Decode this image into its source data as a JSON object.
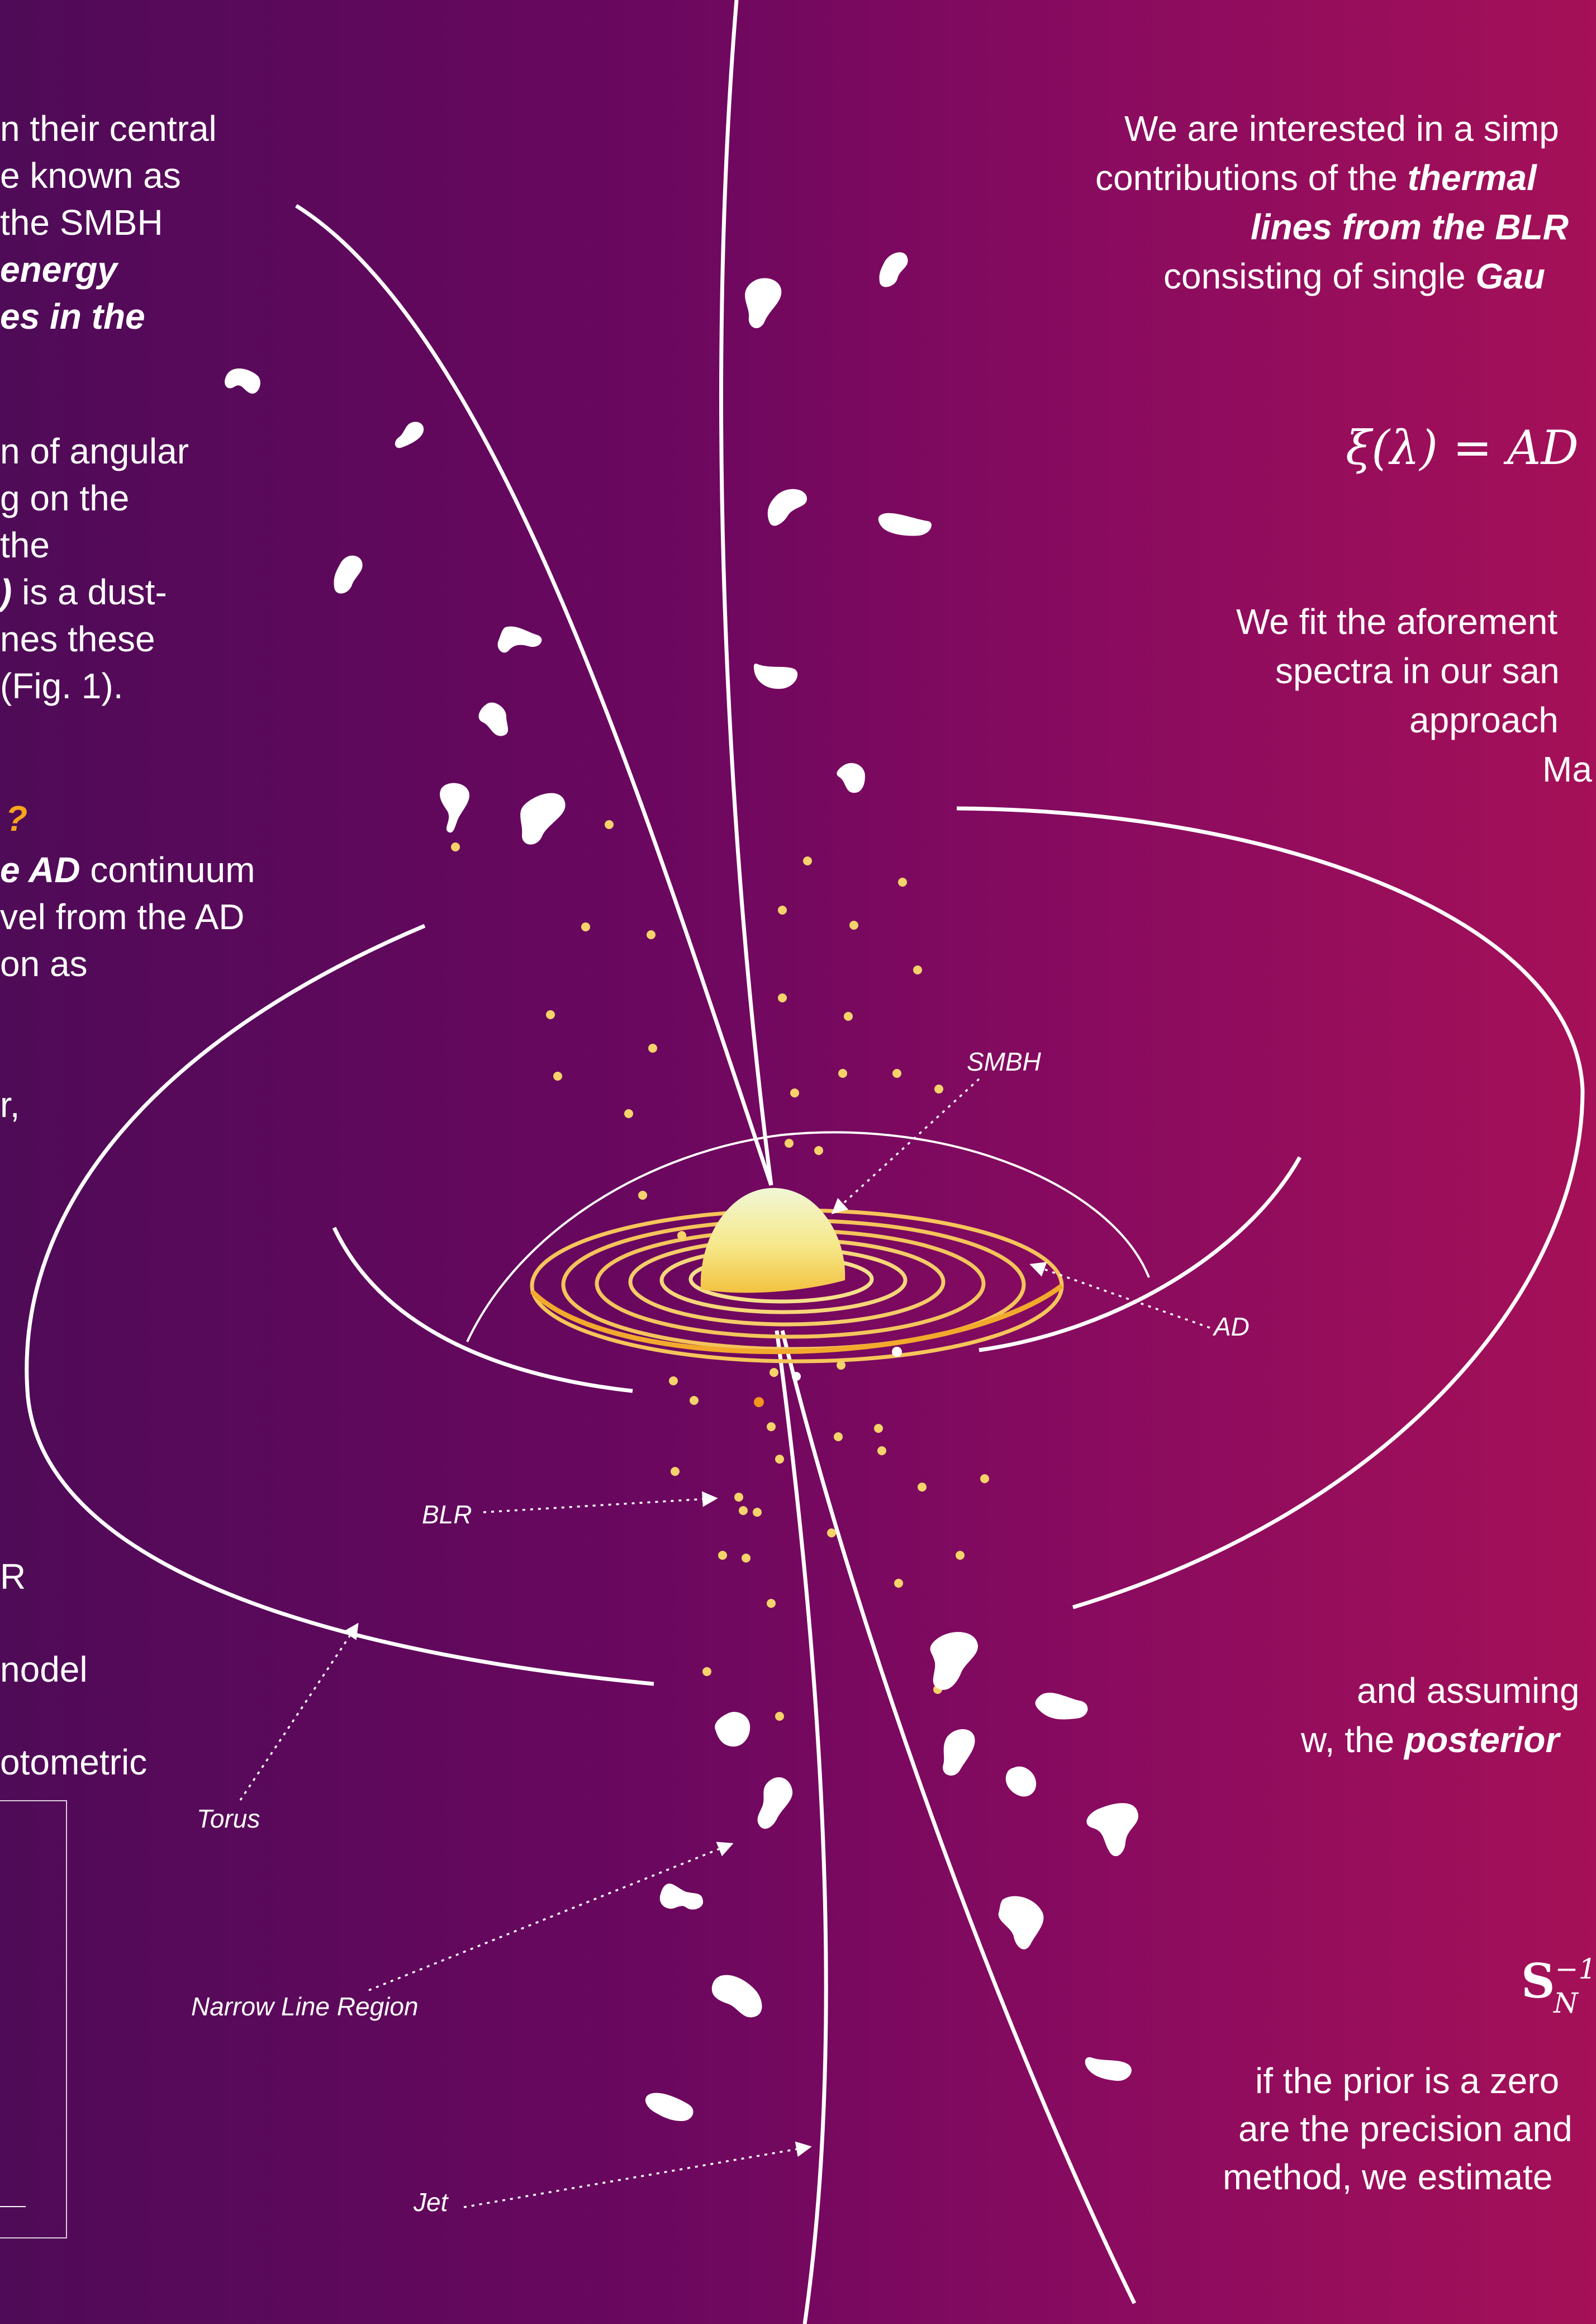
{
  "left_text": {
    "p1": [
      "n their central",
      "e known as",
      "the SMBH"
    ],
    "p1_bold": [
      " energy",
      "es in the"
    ],
    "p2": [
      "n of angular",
      "g on the",
      "the"
    ],
    "p2_mix": {
      "bold": ")",
      "rest": " is a dust-"
    },
    "p2_b": [
      "nes these",
      "(Fig. 1)."
    ],
    "heading": "?",
    "p3_mix": {
      "bold": "e AD",
      "rest": " continuum"
    },
    "p3": [
      "vel from the AD",
      "on as"
    ],
    "p4": [
      "r,"
    ],
    "p5": [
      "R",
      "nodel",
      "otometric"
    ]
  },
  "right_text": {
    "r1": "We are interested in a simp",
    "r2_pre": "contributions of the ",
    "r2_bold": "thermal",
    "r3_bold": "lines from the BLR",
    "r4_pre": "consisting of single ",
    "r4_bold": "Gau",
    "formula": "ξ(λ) = AD",
    "r5": "We fit the aforement",
    "r6": "spectra in our san",
    "r7": "approach",
    "r8": "Ma",
    "r9": "and assuming",
    "r10_pre": "w, the ",
    "r10_bold": "posterior",
    "formula2": "S",
    "formula2_sup": "−1",
    "formula2_sub": "N",
    "r11": "if the prior is a zero",
    "r12": "are the precision and",
    "r13": "method, we estimate"
  },
  "labels": {
    "smbh": "SMBH",
    "ad": "AD",
    "blr": "BLR",
    "torus": "Torus",
    "nlr": "Narrow Line Region",
    "jet": "Jet"
  },
  "colors": {
    "dust_yellow": "#f6d36a",
    "disk_gold": "#f0b43a",
    "white": "#ffffff"
  }
}
